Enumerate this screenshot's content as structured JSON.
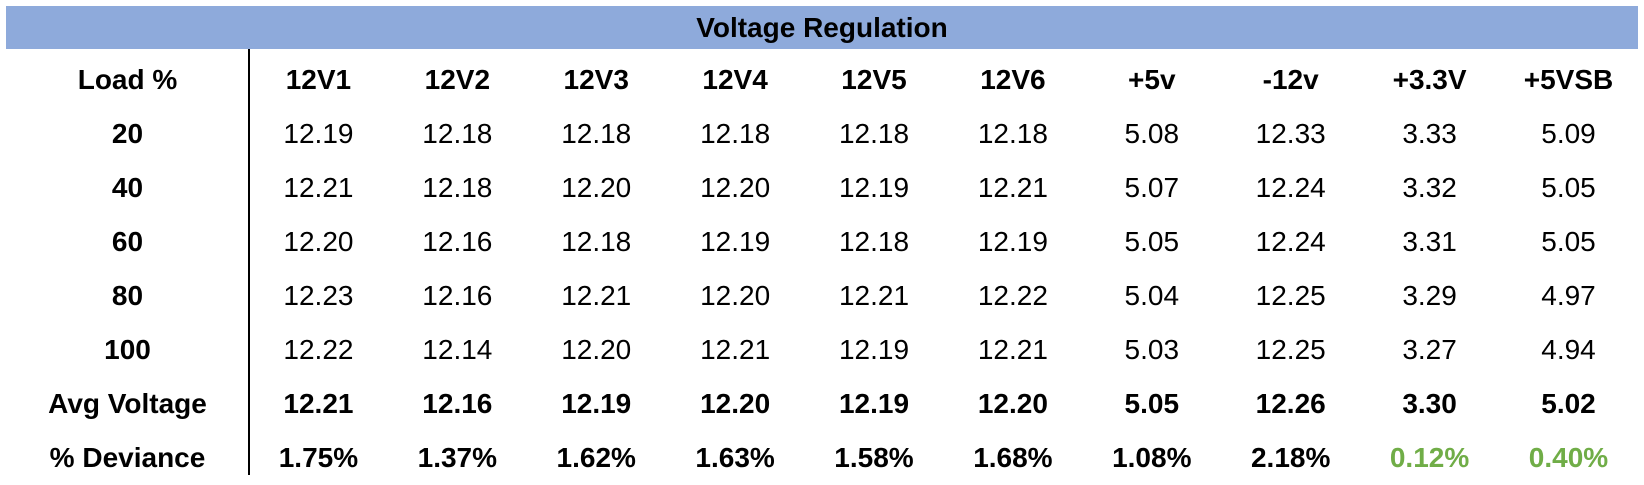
{
  "title": "Voltage Regulation",
  "colors": {
    "header_bg": "#8eaadb",
    "good": "#70ad47"
  },
  "chart_data": {
    "type": "table",
    "title": "Voltage Regulation",
    "row_header_label": "Load %",
    "columns": [
      "12V1",
      "12V2",
      "12V3",
      "12V4",
      "12V5",
      "12V6",
      "+5v",
      "-12v",
      "+3.3V",
      "+5VSB"
    ],
    "rows": [
      {
        "label": "20",
        "values": [
          "12.19",
          "12.18",
          "12.18",
          "12.18",
          "12.18",
          "12.18",
          "5.08",
          "12.33",
          "3.33",
          "5.09"
        ]
      },
      {
        "label": "40",
        "values": [
          "12.21",
          "12.18",
          "12.20",
          "12.20",
          "12.19",
          "12.21",
          "5.07",
          "12.24",
          "3.32",
          "5.05"
        ]
      },
      {
        "label": "60",
        "values": [
          "12.20",
          "12.16",
          "12.18",
          "12.19",
          "12.18",
          "12.19",
          "5.05",
          "12.24",
          "3.31",
          "5.05"
        ]
      },
      {
        "label": "80",
        "values": [
          "12.23",
          "12.16",
          "12.21",
          "12.20",
          "12.21",
          "12.22",
          "5.04",
          "12.25",
          "3.29",
          "4.97"
        ]
      },
      {
        "label": "100",
        "values": [
          "12.22",
          "12.14",
          "12.20",
          "12.21",
          "12.19",
          "12.21",
          "5.03",
          "12.25",
          "3.27",
          "4.94"
        ]
      }
    ],
    "summary_rows": [
      {
        "label": "Avg Voltage",
        "values": [
          "12.21",
          "12.16",
          "12.19",
          "12.20",
          "12.19",
          "12.20",
          "5.05",
          "12.26",
          "3.30",
          "5.02"
        ]
      },
      {
        "label": "% Deviance",
        "values": [
          "1.75%",
          "1.37%",
          "1.62%",
          "1.63%",
          "1.58%",
          "1.68%",
          "1.08%",
          "2.18%",
          "0.12%",
          "0.40%"
        ],
        "highlight_good": [
          8,
          9
        ]
      }
    ]
  }
}
